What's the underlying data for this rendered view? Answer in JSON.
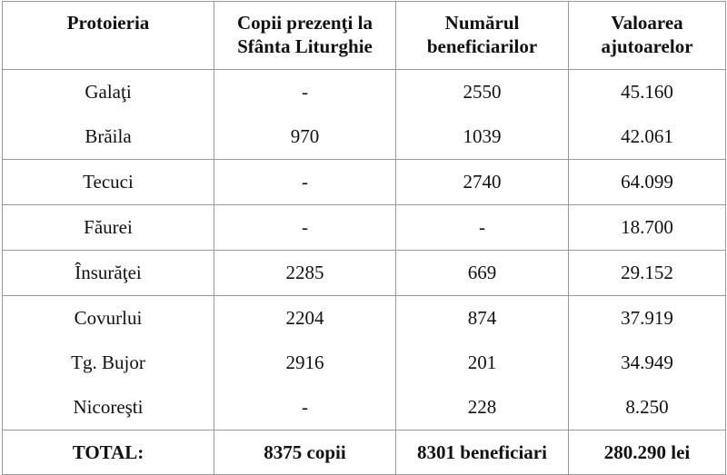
{
  "table": {
    "header": [
      "Protoieria",
      "Copii prezenţi la Sfânta Liturghie",
      "Numărul beneficiarilor",
      "Valoarea ajutoarelor"
    ],
    "rows": [
      [
        "Galaţi",
        "-",
        "2550",
        "45.160"
      ],
      [
        "Brăila",
        "970",
        "1039",
        "42.061"
      ],
      [
        "Tecuci",
        "-",
        "2740",
        "64.099"
      ],
      [
        "Făurei",
        "-",
        "-",
        "18.700"
      ],
      [
        "Însurăţei",
        "2285",
        "669",
        "29.152"
      ],
      [
        "Covurlui",
        "2204",
        "874",
        "37.919"
      ],
      [
        "Tg. Bujor",
        "2916",
        "201",
        "34.949"
      ],
      [
        "Nicoreşti",
        "-",
        "228",
        "8.250"
      ]
    ],
    "total": [
      "TOTAL:",
      "8375 copii",
      "8301 beneficiari",
      "280.290 lei"
    ]
  }
}
